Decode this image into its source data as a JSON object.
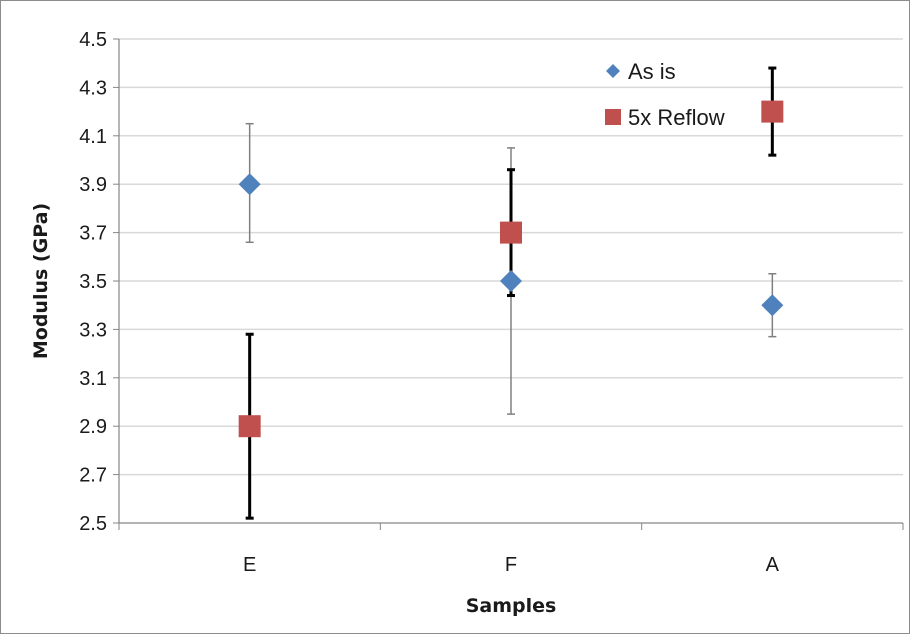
{
  "chart_data": {
    "type": "scatter",
    "xlabel": "Samples",
    "ylabel": "Modulus (GPa)",
    "categories": [
      "E",
      "F",
      "A"
    ],
    "ylim": [
      2.5,
      4.5
    ],
    "yticks": [
      2.5,
      2.7,
      2.9,
      3.1,
      3.3,
      3.5,
      3.7,
      3.9,
      4.1,
      4.3,
      4.5
    ],
    "grid": true,
    "legend_position": "top-right",
    "series": [
      {
        "name": "As is",
        "marker": "diamond",
        "color": "#4f81bd",
        "values": [
          3.9,
          3.5,
          3.4
        ],
        "error_low": [
          3.66,
          2.95,
          3.27
        ],
        "error_high": [
          4.15,
          4.05,
          3.53
        ],
        "error_bar_color": "#808080"
      },
      {
        "name": "5x Reflow",
        "marker": "square",
        "color": "#c0504d",
        "values": [
          2.9,
          3.7,
          4.2
        ],
        "error_low": [
          2.52,
          3.44,
          4.02
        ],
        "error_high": [
          3.28,
          3.96,
          4.38
        ],
        "error_bar_color": "#000000"
      }
    ]
  }
}
